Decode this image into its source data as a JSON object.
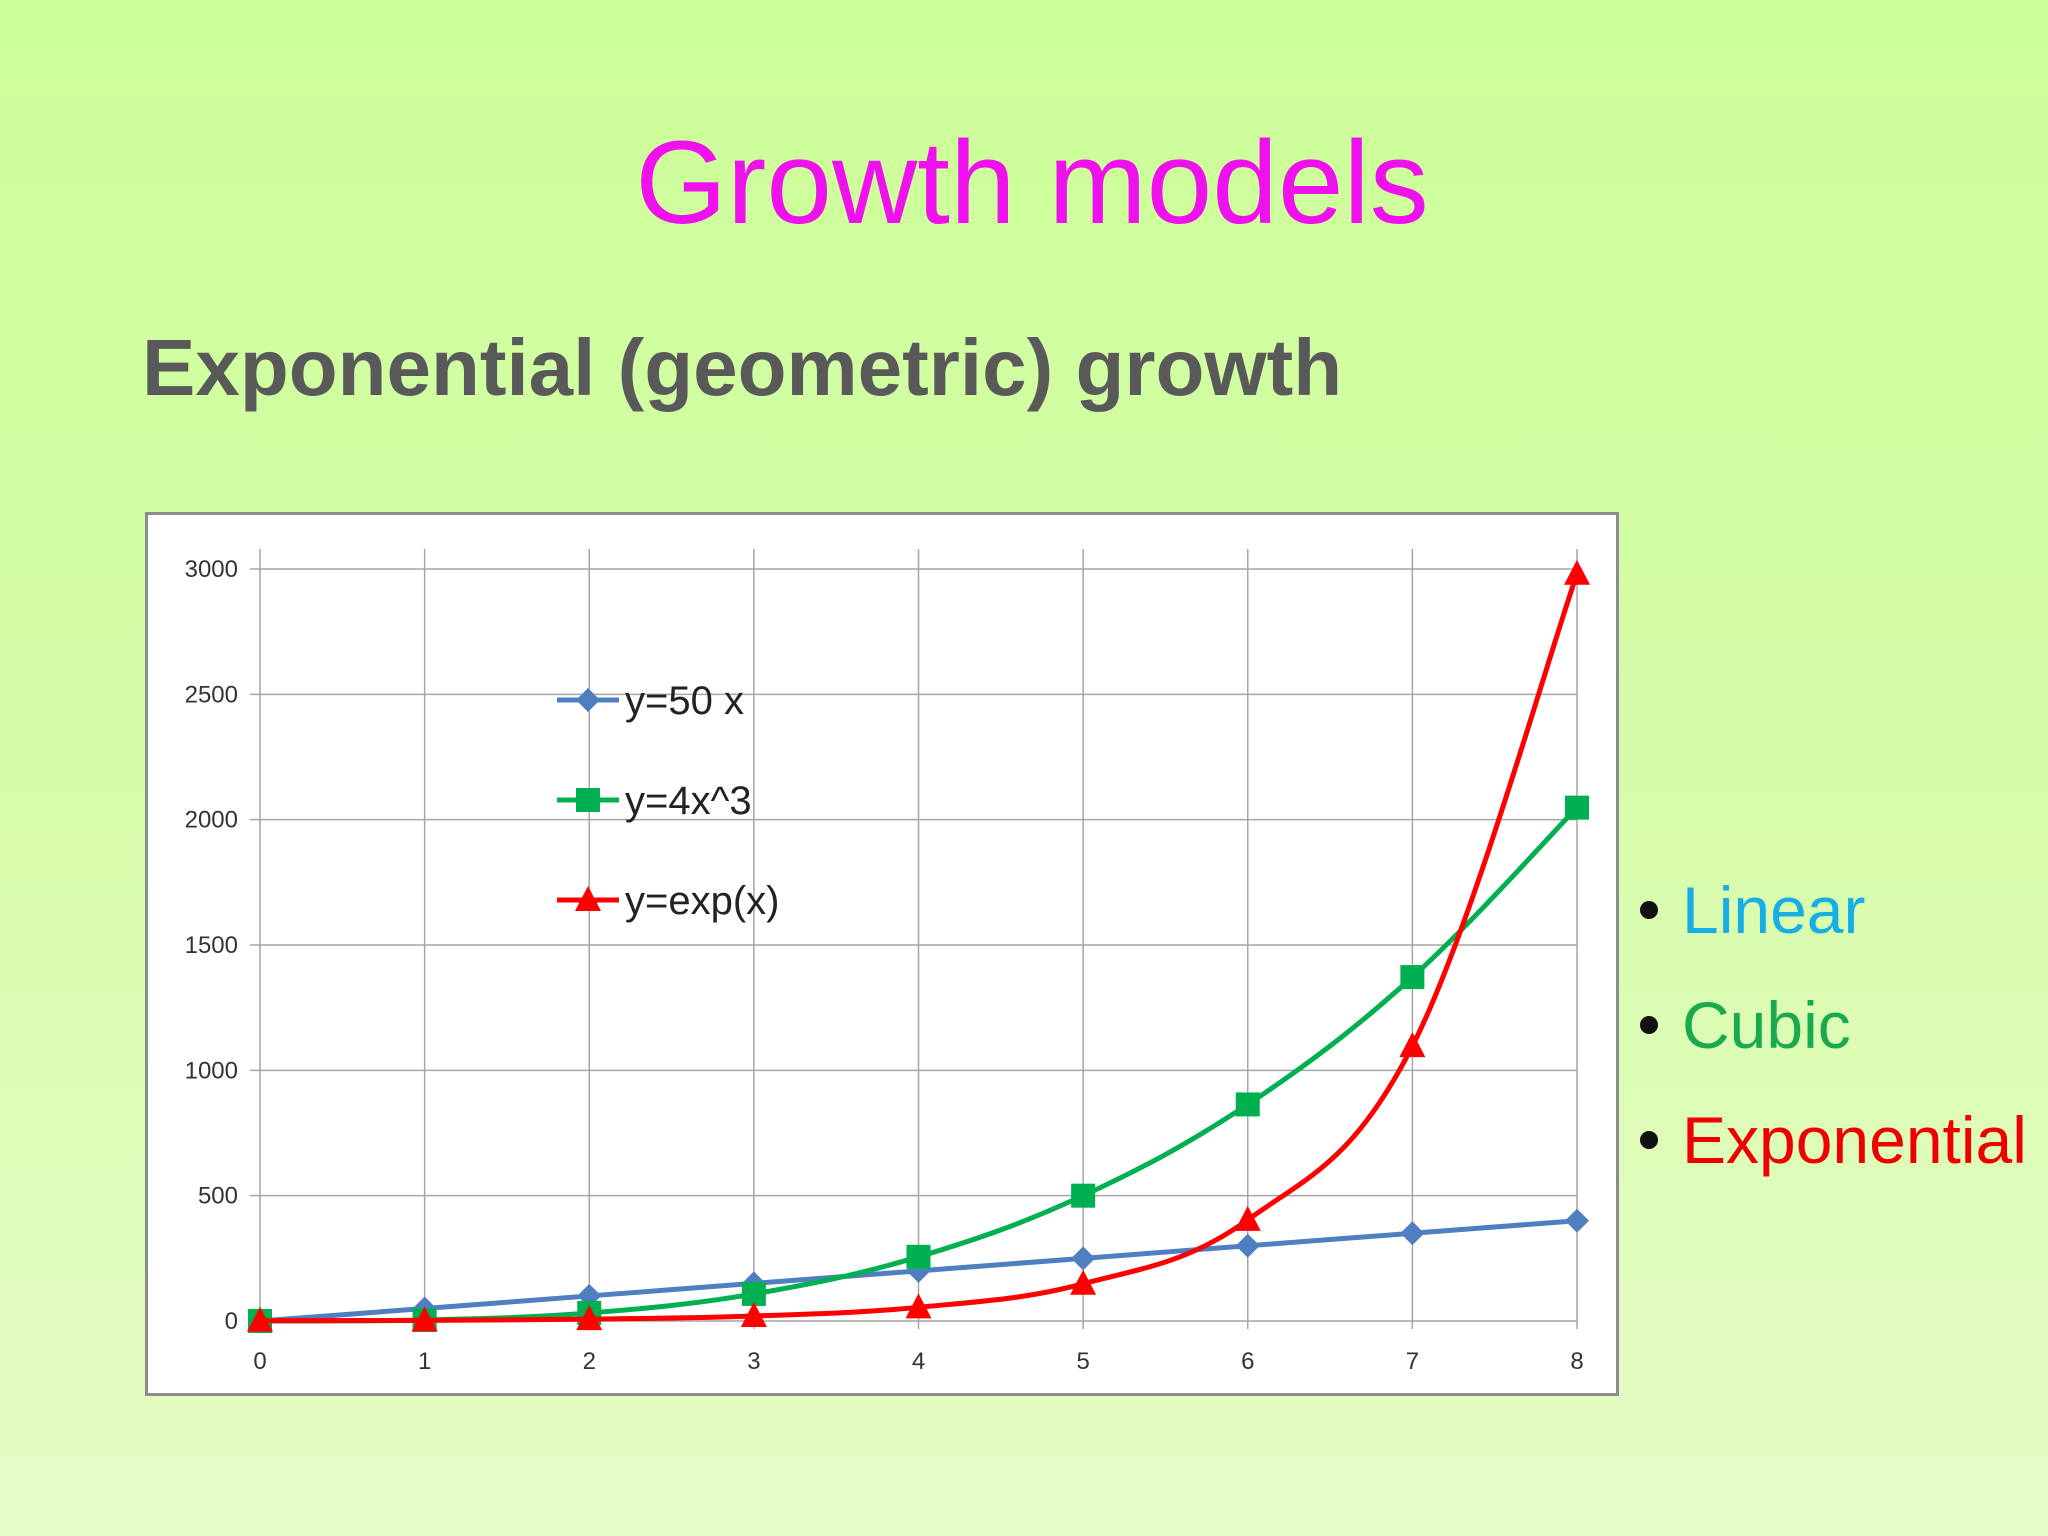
{
  "slide": {
    "title": "Growth models",
    "subtitle": "Exponential (geometric) growth"
  },
  "bullets": [
    {
      "label": "Linear",
      "color": "#17aee6"
    },
    {
      "label": "Cubic",
      "color": "#19aa50"
    },
    {
      "label": "Exponential",
      "color": "#ee0000"
    }
  ],
  "chart_data": {
    "type": "line",
    "title": "",
    "xlabel": "",
    "ylabel": "",
    "x": [
      0,
      1,
      2,
      3,
      4,
      5,
      6,
      7,
      8
    ],
    "xlim": [
      0,
      8
    ],
    "ylim": [
      0,
      3000
    ],
    "x_ticks": [
      "0",
      "1",
      "2",
      "3",
      "4",
      "5",
      "6",
      "7",
      "8"
    ],
    "y_ticks": [
      "0",
      "500",
      "1000",
      "1500",
      "2000",
      "2500",
      "3000"
    ],
    "grid": true,
    "legend_position": "inside-upper-left",
    "series": [
      {
        "name": "y=50 x",
        "marker": "diamond",
        "color": "#4f7fc0",
        "values": [
          0,
          50,
          100,
          150,
          200,
          250,
          300,
          350,
          400
        ]
      },
      {
        "name": "y=4x^3",
        "marker": "square",
        "color": "#00b050",
        "values": [
          0,
          4,
          32,
          108,
          256,
          500,
          864,
          1372,
          2048
        ]
      },
      {
        "name": "y=exp(x)",
        "marker": "triangle",
        "color": "#ff0000",
        "values": [
          1,
          2.7,
          7.4,
          20.1,
          54.6,
          148.4,
          403.4,
          1096.6,
          2981
        ]
      }
    ]
  }
}
